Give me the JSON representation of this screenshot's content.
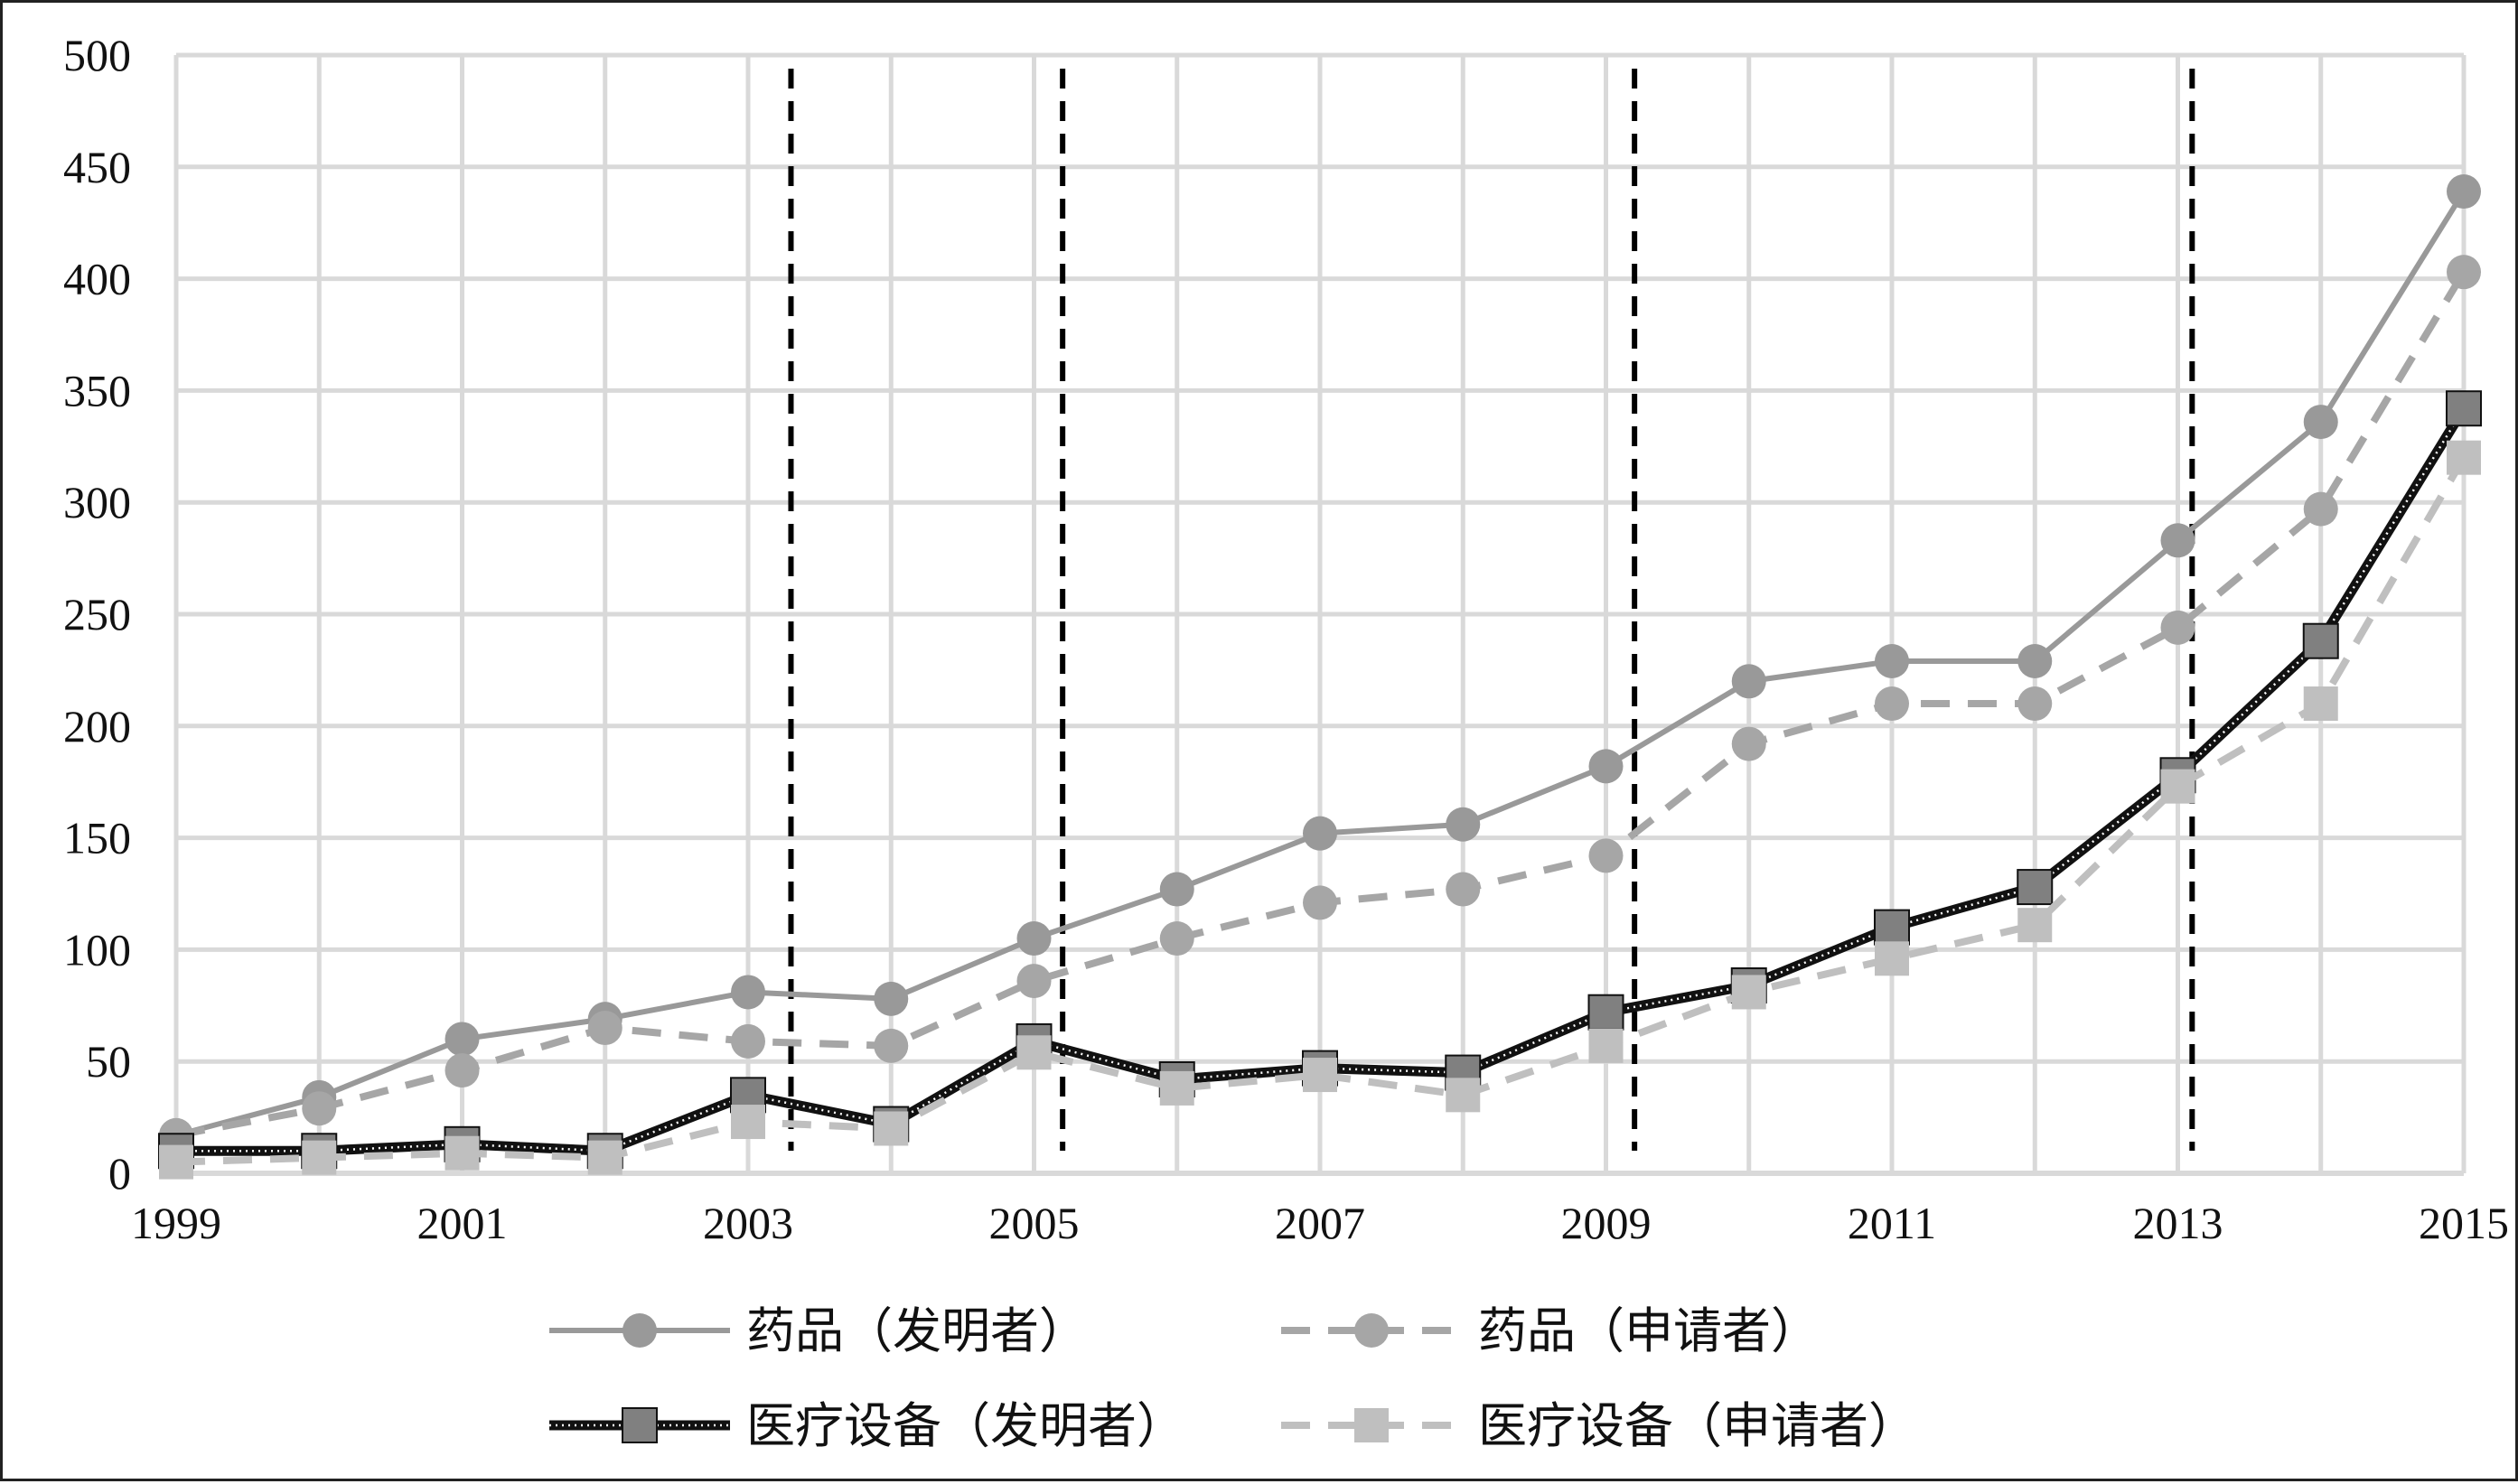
{
  "chart_data": {
    "type": "line",
    "title": "",
    "xlabel": "",
    "ylabel": "",
    "x": [
      1999,
      2000,
      2001,
      2002,
      2003,
      2004,
      2005,
      2006,
      2007,
      2008,
      2009,
      2010,
      2011,
      2012,
      2013,
      2014,
      2015
    ],
    "x_tick_labels": [
      "1999",
      "2001",
      "2003",
      "2005",
      "2007",
      "2009",
      "2011",
      "2013",
      "2015"
    ],
    "y_tick_labels": [
      "0",
      "50",
      "100",
      "150",
      "200",
      "250",
      "300",
      "350",
      "400",
      "450",
      "500"
    ],
    "ylim": [
      0,
      500
    ],
    "grid": true,
    "legend_position": "bottom",
    "vertical_reference_lines": [
      2003.3,
      2005.2,
      2009.2,
      2013.1
    ],
    "series": [
      {
        "name": "药品（发明者）",
        "color": "#999999",
        "style": "solid",
        "marker": "circle",
        "values": [
          17,
          34,
          60,
          69,
          81,
          78,
          105,
          127,
          152,
          156,
          182,
          220,
          229,
          229,
          283,
          336,
          439
        ]
      },
      {
        "name": "药品（申请者）",
        "color": "#a6a6a6",
        "style": "dashed",
        "marker": "circle",
        "values": [
          17,
          29,
          46,
          65,
          59,
          57,
          86,
          105,
          121,
          127,
          142,
          192,
          210,
          210,
          244,
          297,
          403
        ]
      },
      {
        "name": "医疗设备（发明者）",
        "color": "#111111",
        "style": "dotted-black",
        "marker": "square",
        "values": [
          10,
          10,
          13,
          10,
          35,
          22,
          59,
          42,
          47,
          45,
          72,
          84,
          110,
          128,
          178,
          238,
          342
        ]
      },
      {
        "name": "医疗设备（申请者）",
        "color": "#bfbfbf",
        "style": "dashed",
        "marker": "square",
        "values": [
          5,
          7,
          9,
          7,
          23,
          20,
          54,
          38,
          44,
          35,
          57,
          81,
          96,
          111,
          173,
          210,
          320
        ]
      }
    ]
  }
}
